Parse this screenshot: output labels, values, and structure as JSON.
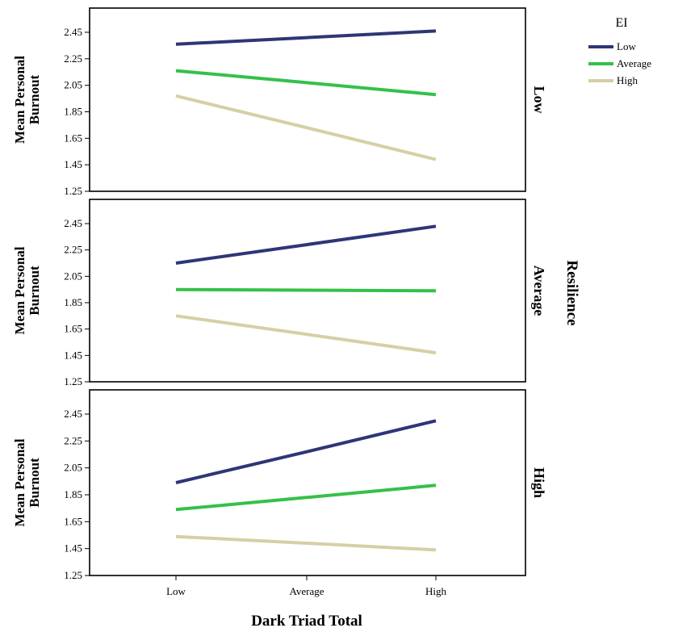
{
  "chart_data": {
    "type": "line",
    "xlabel": "Dark Triad Total",
    "ylabel": "Mean Personal Burnout",
    "panel_group_label": "Resilience",
    "categories": [
      "Low",
      "Average",
      "High"
    ],
    "yticks": [
      "1.25",
      "1.45",
      "1.65",
      "1.85",
      "2.05",
      "2.25",
      "2.45"
    ],
    "ylim": [
      1.25,
      2.45
    ],
    "legend": {
      "title": "EI",
      "position": "top-right",
      "entries": [
        "Low",
        "Average",
        "High"
      ]
    },
    "colors": {
      "Low": "#2e3676",
      "Average": "#35c04a",
      "High": "#d6cfa6"
    },
    "panels": [
      {
        "label": "Low",
        "series": [
          {
            "name": "Low",
            "values": [
              2.36,
              2.41,
              2.46
            ]
          },
          {
            "name": "Average",
            "values": [
              2.16,
              2.07,
              1.98
            ]
          },
          {
            "name": "High",
            "values": [
              1.97,
              1.73,
              1.49
            ]
          }
        ]
      },
      {
        "label": "Average",
        "series": [
          {
            "name": "Low",
            "values": [
              2.15,
              2.29,
              2.43
            ]
          },
          {
            "name": "Average",
            "values": [
              1.95,
              1.945,
              1.94
            ]
          },
          {
            "name": "High",
            "values": [
              1.75,
              1.61,
              1.47
            ]
          }
        ]
      },
      {
        "label": "High",
        "series": [
          {
            "name": "Low",
            "values": [
              1.94,
              2.17,
              2.4
            ]
          },
          {
            "name": "Average",
            "values": [
              1.74,
              1.83,
              1.92
            ]
          },
          {
            "name": "High",
            "values": [
              1.54,
              1.49,
              1.44
            ]
          }
        ]
      }
    ]
  }
}
